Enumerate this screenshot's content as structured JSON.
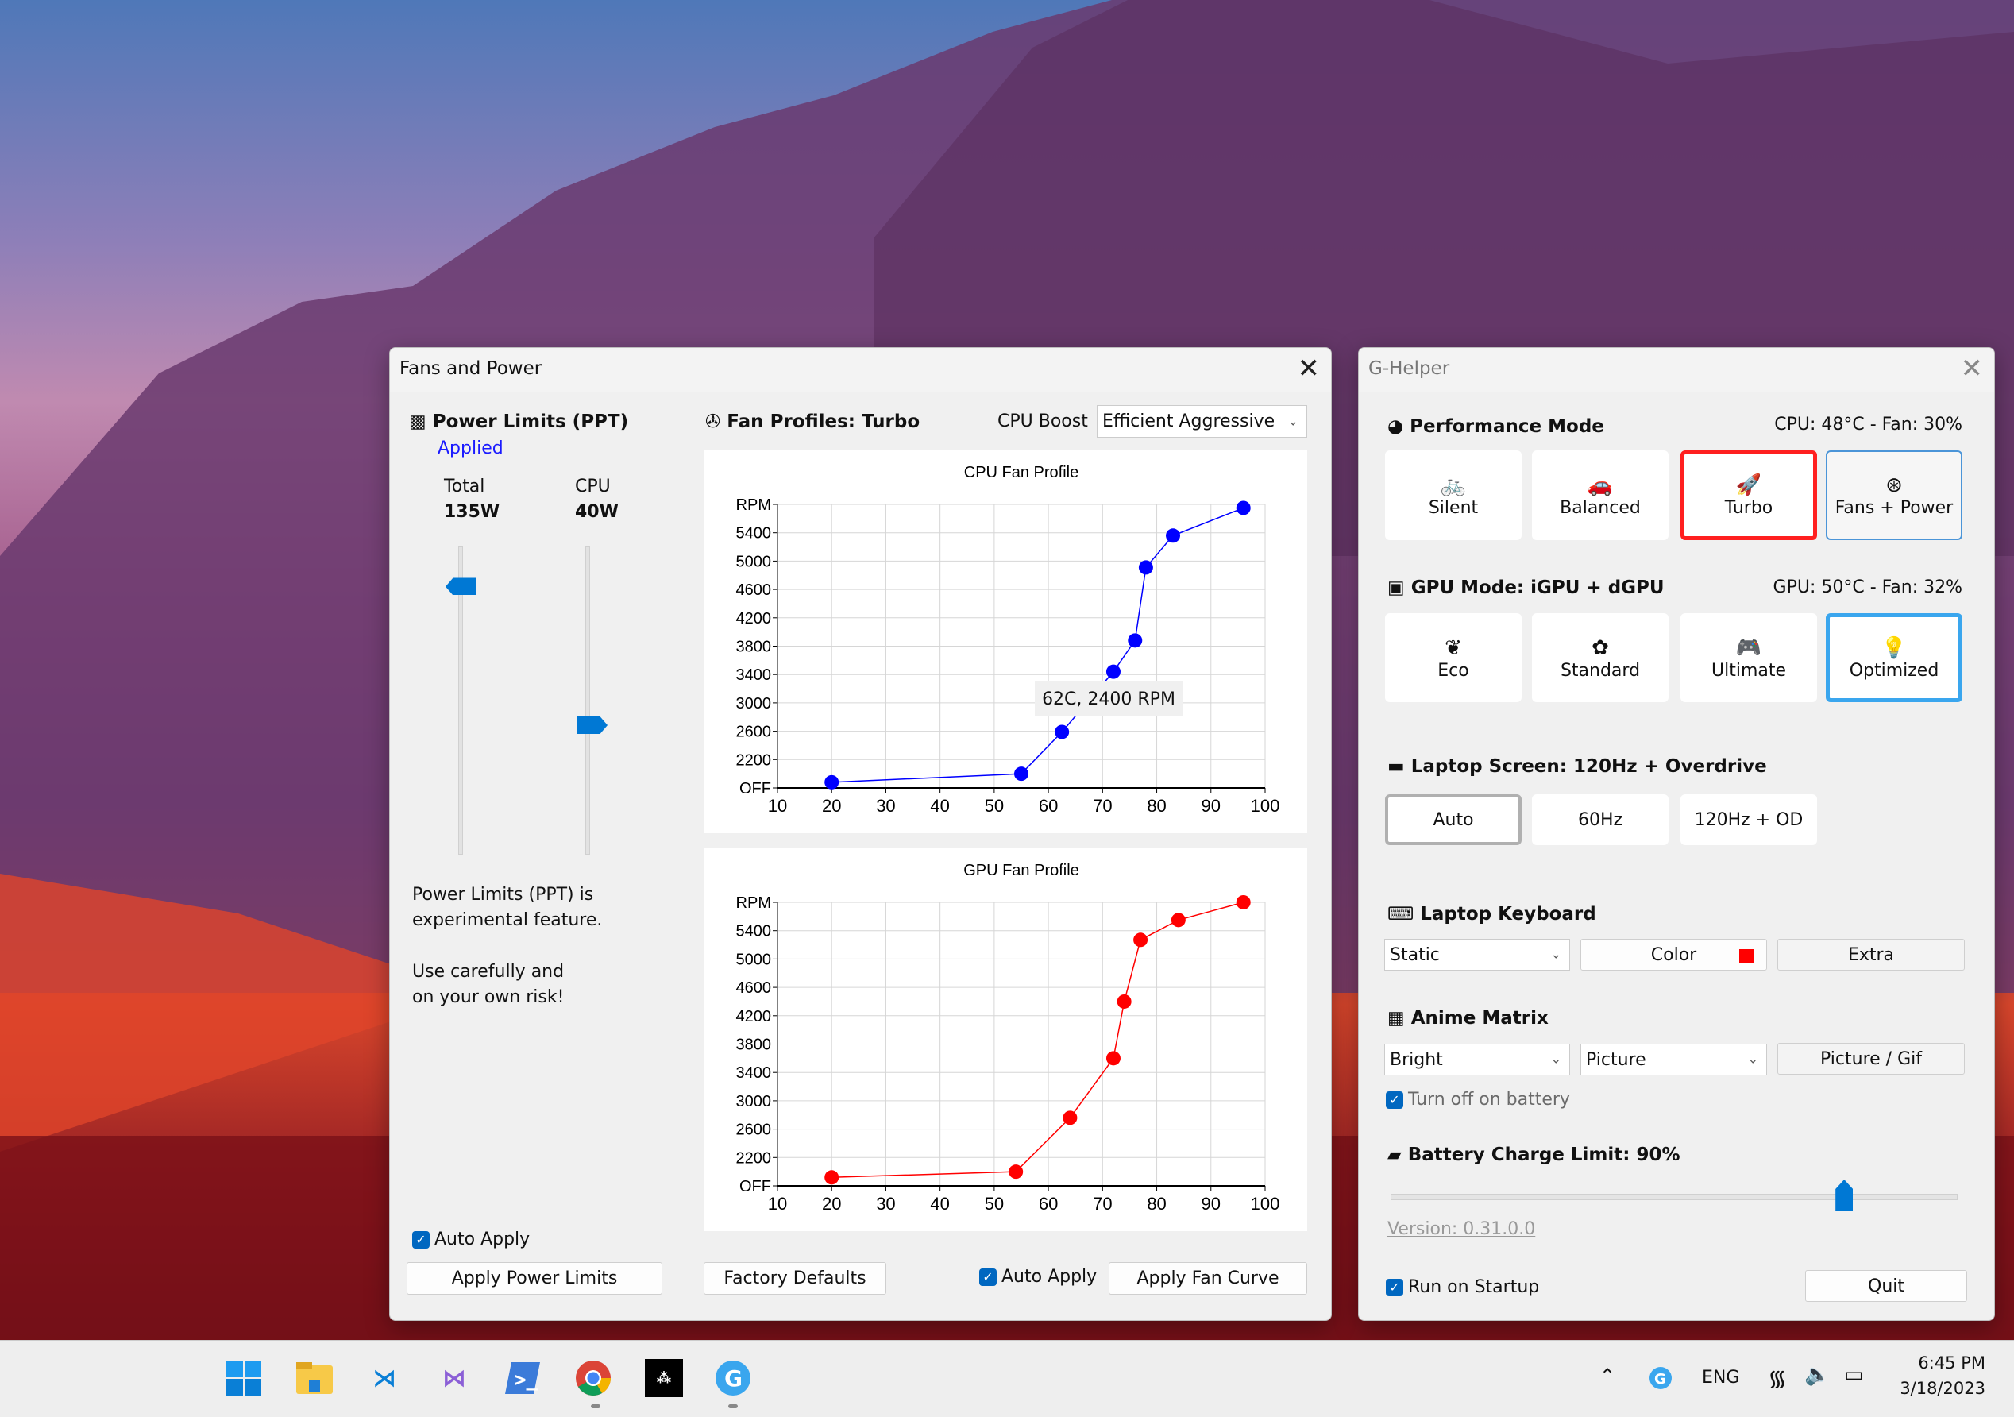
{
  "fans_window": {
    "title": "Fans and Power",
    "power_limits": {
      "header": "Power Limits (PPT)",
      "status": "Applied",
      "total_label": "Total",
      "total_value": "135W",
      "cpu_label": "CPU",
      "cpu_value": "40W",
      "warning_line1": "Power Limits (PPT) is",
      "warning_line2": "experimental feature.",
      "warning_line3": "Use carefully and",
      "warning_line4": "on your own risk!",
      "auto_apply_label": "Auto Apply",
      "auto_apply_checked": true,
      "apply_button": "Apply Power Limits"
    },
    "fan_profiles": {
      "header": "Fan Profiles: Turbo",
      "cpu_boost_label": "CPU Boost",
      "cpu_boost_value": "Efficient Aggressive",
      "tooltip": "62C, 2400 RPM",
      "factory_defaults_button": "Factory Defaults",
      "auto_apply_label": "Auto Apply",
      "auto_apply_checked": true,
      "apply_button": "Apply Fan Curve"
    }
  },
  "chart_data": [
    {
      "type": "line",
      "title": "CPU Fan Profile",
      "color": "#0000ff",
      "xlim": [
        10,
        100
      ],
      "x_ticks": [
        "10",
        "20",
        "30",
        "40",
        "50",
        "60",
        "70",
        "80",
        "90",
        "100"
      ],
      "ylim": [
        1800,
        5800
      ],
      "y_tick_values": [
        1800,
        2200,
        2600,
        3000,
        3400,
        3800,
        4200,
        4600,
        5000,
        5400,
        5800
      ],
      "y_tick_labels": [
        "OFF",
        "2200",
        "2600",
        "3000",
        "3400",
        "3800",
        "4200",
        "4600",
        "5000",
        "5400",
        "RPM"
      ],
      "grid": true,
      "x": [
        20,
        55,
        62.5,
        72,
        76,
        78,
        83,
        96
      ],
      "y": [
        1880,
        2000,
        2590,
        3440,
        3880,
        4910,
        5360,
        5750
      ]
    },
    {
      "type": "line",
      "title": "GPU Fan Profile",
      "color": "#ff0000",
      "xlim": [
        10,
        100
      ],
      "x_ticks": [
        "10",
        "20",
        "30",
        "40",
        "50",
        "60",
        "70",
        "80",
        "90",
        "100"
      ],
      "ylim": [
        1800,
        5800
      ],
      "y_tick_values": [
        1800,
        2200,
        2600,
        3000,
        3400,
        3800,
        4200,
        4600,
        5000,
        5400,
        5800
      ],
      "y_tick_labels": [
        "OFF",
        "2200",
        "2600",
        "3000",
        "3400",
        "3800",
        "4200",
        "4600",
        "5000",
        "5400",
        "RPM"
      ],
      "grid": true,
      "x": [
        20,
        54,
        64,
        72,
        74,
        77,
        84,
        96
      ],
      "y": [
        1920,
        2000,
        2760,
        3600,
        4400,
        5270,
        5550,
        5800
      ]
    }
  ],
  "power_sliders": {
    "total_fraction": 0.87,
    "cpu_fraction": 0.42
  },
  "ghelper": {
    "title": "G-Helper",
    "performance": {
      "header": "Performance Mode",
      "stats": "CPU: 48°C -  Fan: 30%",
      "modes": [
        {
          "label": "Silent",
          "icon": "bicycle-icon",
          "glyph": "🚲"
        },
        {
          "label": "Balanced",
          "icon": "car-icon",
          "glyph": "🚗"
        },
        {
          "label": "Turbo",
          "icon": "rocket-icon",
          "glyph": "🚀"
        },
        {
          "label": "Fans + Power",
          "icon": "fan-icon",
          "glyph": "⊛"
        }
      ],
      "selected": "Turbo",
      "selected_color": "#ff2020"
    },
    "gpu": {
      "header": "GPU Mode: iGPU + dGPU",
      "stats": "GPU: 50°C -  Fan: 32%",
      "modes": [
        {
          "label": "Eco",
          "icon": "leaf-icon",
          "glyph": "❦"
        },
        {
          "label": "Standard",
          "icon": "flower-icon",
          "glyph": "✿"
        },
        {
          "label": "Ultimate",
          "icon": "gamepad-icon",
          "glyph": "🎮"
        },
        {
          "label": "Optimized",
          "icon": "lightbulb-gear-icon",
          "glyph": "💡"
        }
      ],
      "selected": "Optimized",
      "selected_color": "#3aa6ee"
    },
    "screen": {
      "header": "Laptop Screen: 120Hz + Overdrive",
      "modes": [
        "Auto",
        "60Hz",
        "120Hz + OD"
      ],
      "selected": "Auto"
    },
    "keyboard": {
      "header": "Laptop Keyboard",
      "mode_value": "Static",
      "color_button": "Color",
      "color_swatch": "#ff0000",
      "extra_button": "Extra"
    },
    "anime": {
      "header": "Anime Matrix",
      "brightness_value": "Bright",
      "mode_value": "Picture",
      "picture_button": "Picture / Gif",
      "battery_off_label": "Turn off on battery",
      "battery_off_checked": true
    },
    "battery": {
      "header": "Battery Charge Limit: 90%",
      "limit_percent": 90,
      "slider_min": 50,
      "slider_max": 100
    },
    "version": "Version: 0.31.0.0",
    "run_on_startup_label": "Run on Startup",
    "run_on_startup_checked": true,
    "quit_button": "Quit"
  },
  "taskbar": {
    "apps": [
      "start-icon",
      "file-explorer-icon",
      "vscode-icon",
      "visual-studio-icon",
      "powershell-icon",
      "chrome-icon",
      "tidal-icon",
      "g-helper-icon"
    ],
    "tray": {
      "language": "ENG",
      "time": "6:45 PM",
      "date": "3/18/2023"
    }
  }
}
